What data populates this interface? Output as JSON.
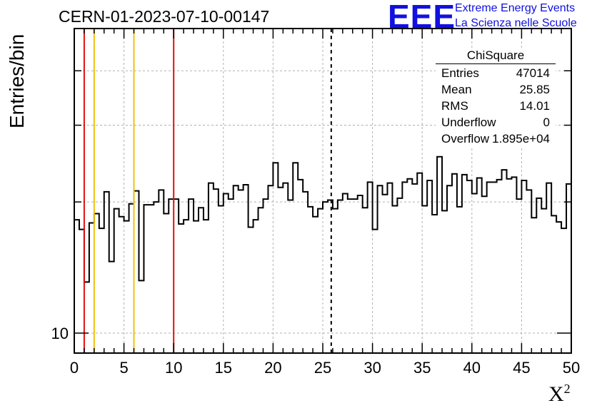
{
  "header": {
    "title": "CERN-01-2023-07-10-00147",
    "logo_text": "EEE",
    "logo_line1": "Extreme Energy Events",
    "logo_line2": "La Scienza nelle Scuole"
  },
  "stats_box": {
    "title": "ChiSquare",
    "rows": [
      {
        "key": "Entries",
        "value": "47014"
      },
      {
        "key": "Mean",
        "value": "25.85"
      },
      {
        "key": "RMS",
        "value": "14.01"
      },
      {
        "key": "Underflow",
        "value": "0"
      },
      {
        "key": "Overflow",
        "value": "1.895e+04"
      }
    ]
  },
  "colors": {
    "histogram": "#000000",
    "red_line": "#e01010",
    "yellow_line": "#f0c010",
    "grid": "#b0b0b0"
  },
  "chart_data": {
    "type": "histogram",
    "title": "CERN-01-2023-07-10-00147",
    "xlabel": "X",
    "xlabel_sup": "2",
    "ylabel": "Entries/bin",
    "xlim": [
      0,
      50
    ],
    "ylim": [
      9,
      50
    ],
    "log_y": true,
    "grid": true,
    "bin_width": 0.5,
    "x_ticks": [
      "0",
      "5",
      "10",
      "15",
      "20",
      "25",
      "30",
      "35",
      "40",
      "45",
      "50"
    ],
    "y_tick_label": "10",
    "y_tick_value": 10,
    "counts": [
      18.2,
      17.3,
      13.1,
      17.9,
      18.8,
      17.4,
      21.1,
      14.6,
      19.3,
      18.5,
      18.1,
      19.8,
      21.2,
      13.2,
      19.7,
      19.7,
      20.0,
      21.3,
      18.8,
      20.3,
      20.3,
      17.8,
      18.2,
      20.3,
      18.1,
      19.4,
      18.2,
      22.1,
      21.4,
      19.6,
      20.9,
      20.3,
      21.8,
      21.3,
      21.9,
      17.5,
      18.2,
      19.4,
      20.3,
      21.8,
      24.6,
      21.6,
      22.1,
      20.2,
      24.6,
      22.5,
      21.1,
      19.5,
      18.5,
      19.3,
      20.0,
      20.2,
      19.3,
      20.2,
      20.9,
      20.3,
      20.3,
      20.7,
      19.4,
      22.2,
      17.3,
      21.8,
      20.8,
      22.1,
      19.6,
      20.4,
      22.2,
      22.6,
      22.0,
      23.3,
      19.6,
      22.4,
      18.7,
      25.4,
      19.1,
      21.8,
      23.2,
      19.5,
      23.1,
      22.4,
      20.9,
      22.7,
      20.6,
      22.2,
      22.2,
      22.5,
      23.7,
      22.6,
      22.8,
      20.3,
      22.4,
      21.3,
      18.4,
      20.4,
      19.3,
      22.1,
      18.6,
      18.0,
      17.4,
      22.0
    ],
    "vertical_lines": [
      {
        "x": 1,
        "color": "red"
      },
      {
        "x": 2,
        "color": "yellow"
      },
      {
        "x": 6,
        "color": "yellow"
      },
      {
        "x": 10,
        "color": "red"
      },
      {
        "x": 25.85,
        "color": "dashed"
      }
    ]
  }
}
